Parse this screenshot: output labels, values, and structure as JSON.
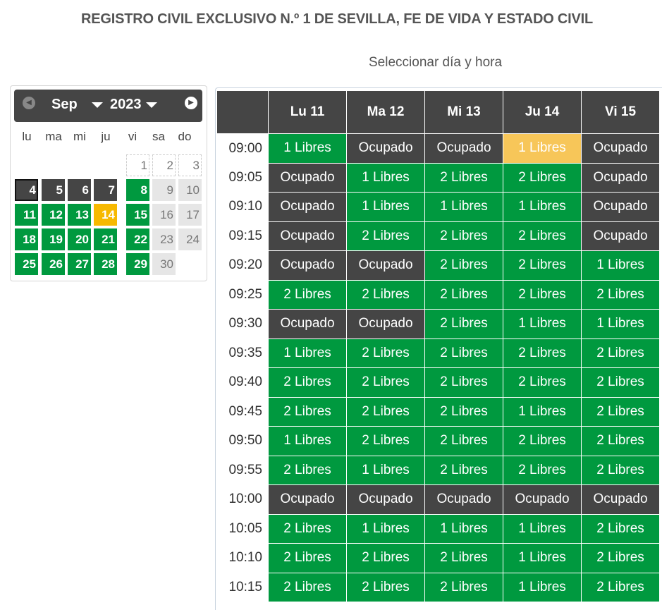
{
  "header": {
    "title": "REGISTRO CIVIL EXCLUSIVO N.º 1 DE SEVILLA, FE DE VIDA Y ESTADO CIVIL",
    "subtitle": "Seleccionar día y hora"
  },
  "calendar": {
    "month": "Sep",
    "year": "2023",
    "weekdays": [
      "lu",
      "ma",
      "mi",
      "ju",
      "vi",
      "sa",
      "do"
    ],
    "weeks": [
      [
        {
          "d": "",
          "s": "none"
        },
        {
          "d": "",
          "s": "none"
        },
        {
          "d": "",
          "s": "none"
        },
        {
          "d": "",
          "s": "none"
        },
        {
          "d": "1",
          "s": "empty"
        },
        {
          "d": "2",
          "s": "empty"
        },
        {
          "d": "3",
          "s": "empty"
        }
      ],
      [
        {
          "d": "4",
          "s": "today"
        },
        {
          "d": "5",
          "s": "gray"
        },
        {
          "d": "6",
          "s": "gray"
        },
        {
          "d": "7",
          "s": "gray"
        },
        {
          "d": "8",
          "s": "green"
        },
        {
          "d": "9",
          "s": "light"
        },
        {
          "d": "10",
          "s": "light"
        }
      ],
      [
        {
          "d": "11",
          "s": "green"
        },
        {
          "d": "12",
          "s": "green"
        },
        {
          "d": "13",
          "s": "green"
        },
        {
          "d": "14",
          "s": "yellow"
        },
        {
          "d": "15",
          "s": "green"
        },
        {
          "d": "16",
          "s": "light"
        },
        {
          "d": "17",
          "s": "light"
        }
      ],
      [
        {
          "d": "18",
          "s": "green"
        },
        {
          "d": "19",
          "s": "green"
        },
        {
          "d": "20",
          "s": "green"
        },
        {
          "d": "21",
          "s": "green"
        },
        {
          "d": "22",
          "s": "green"
        },
        {
          "d": "23",
          "s": "light"
        },
        {
          "d": "24",
          "s": "light"
        }
      ],
      [
        {
          "d": "25",
          "s": "green"
        },
        {
          "d": "26",
          "s": "green"
        },
        {
          "d": "27",
          "s": "green"
        },
        {
          "d": "28",
          "s": "green"
        },
        {
          "d": "29",
          "s": "green"
        },
        {
          "d": "30",
          "s": "light"
        },
        {
          "d": "",
          "s": "none"
        }
      ]
    ],
    "prev_icon": "chevron-left-circle-icon",
    "next_icon": "chevron-right-circle-icon"
  },
  "schedule": {
    "days": [
      "Lu 11",
      "Ma 12",
      "Mi 13",
      "Ju 14",
      "Vi 15"
    ],
    "rows": [
      {
        "time": "09:00",
        "slots": [
          "1 Libres",
          "Ocupado",
          "Ocupado",
          "1 Libres",
          "Ocupado"
        ],
        "selected": 3
      },
      {
        "time": "09:05",
        "slots": [
          "Ocupado",
          "1 Libres",
          "2 Libres",
          "2 Libres",
          "Ocupado"
        ]
      },
      {
        "time": "09:10",
        "slots": [
          "Ocupado",
          "1 Libres",
          "1 Libres",
          "1 Libres",
          "Ocupado"
        ]
      },
      {
        "time": "09:15",
        "slots": [
          "Ocupado",
          "2 Libres",
          "2 Libres",
          "2 Libres",
          "Ocupado"
        ]
      },
      {
        "time": "09:20",
        "slots": [
          "Ocupado",
          "Ocupado",
          "2 Libres",
          "2 Libres",
          "1 Libres"
        ]
      },
      {
        "time": "09:25",
        "slots": [
          "2 Libres",
          "2 Libres",
          "2 Libres",
          "2 Libres",
          "2 Libres"
        ]
      },
      {
        "time": "09:30",
        "slots": [
          "Ocupado",
          "Ocupado",
          "2 Libres",
          "1 Libres",
          "1 Libres"
        ]
      },
      {
        "time": "09:35",
        "slots": [
          "1 Libres",
          "2 Libres",
          "2 Libres",
          "2 Libres",
          "2 Libres"
        ]
      },
      {
        "time": "09:40",
        "slots": [
          "2 Libres",
          "2 Libres",
          "2 Libres",
          "2 Libres",
          "2 Libres"
        ]
      },
      {
        "time": "09:45",
        "slots": [
          "2 Libres",
          "2 Libres",
          "2 Libres",
          "1 Libres",
          "2 Libres"
        ]
      },
      {
        "time": "09:50",
        "slots": [
          "1 Libres",
          "2 Libres",
          "2 Libres",
          "2 Libres",
          "2 Libres"
        ]
      },
      {
        "time": "09:55",
        "slots": [
          "2 Libres",
          "1 Libres",
          "2 Libres",
          "2 Libres",
          "2 Libres"
        ]
      },
      {
        "time": "10:00",
        "slots": [
          "Ocupado",
          "Ocupado",
          "Ocupado",
          "Ocupado",
          "Ocupado"
        ]
      },
      {
        "time": "10:05",
        "slots": [
          "2 Libres",
          "1 Libres",
          "1 Libres",
          "1 Libres",
          "2 Libres"
        ]
      },
      {
        "time": "10:10",
        "slots": [
          "2 Libres",
          "2 Libres",
          "2 Libres",
          "1 Libres",
          "2 Libres"
        ]
      },
      {
        "time": "10:15",
        "slots": [
          "2 Libres",
          "2 Libres",
          "2 Libres",
          "1 Libres",
          "2 Libres"
        ]
      }
    ]
  },
  "colors": {
    "free": "#00993f",
    "busy": "#454545",
    "selected": "#f7c659",
    "today_marker": "#f7b900"
  }
}
